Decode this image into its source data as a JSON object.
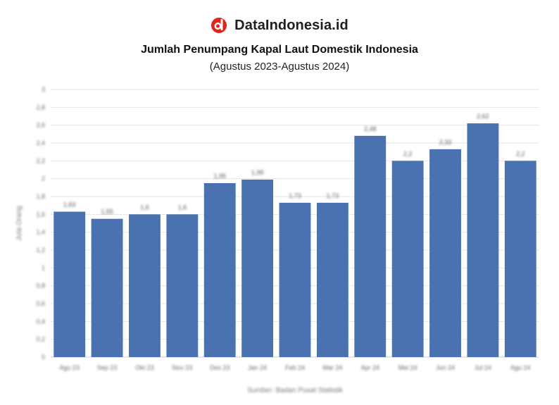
{
  "brand": {
    "name": "DataIndonesia.id",
    "logo_icon": "dataindonesia-logo-icon",
    "logo_color": "#e2231a"
  },
  "chart_data": {
    "type": "bar",
    "title": "Jumlah Penumpang Kapal Laut Domestik Indonesia",
    "subtitle": "(Agustus 2023-Agustus 2024)",
    "ylabel": "Juta Orang",
    "source": "Sumber: Badan Pusat Statistik",
    "categories": [
      "Agu 23",
      "Sep 23",
      "Okt 23",
      "Nov 23",
      "Des 23",
      "Jan 24",
      "Feb 24",
      "Mar 24",
      "Apr 24",
      "Mei 24",
      "Jun 24",
      "Jul 24",
      "Agu 24"
    ],
    "values": [
      1.63,
      1.55,
      1.6,
      1.6,
      1.95,
      1.99,
      1.73,
      1.73,
      2.48,
      2.2,
      2.33,
      2.62,
      2.2
    ],
    "data_labels": [
      "1,63",
      "1,55",
      "1,6",
      "1,6",
      "1,95",
      "1,99",
      "1,73",
      "1,73",
      "2,48",
      "2,2",
      "2,33",
      "2,62",
      "2,2"
    ],
    "ylim": [
      0,
      3
    ],
    "yticks": [
      0,
      0.2,
      0.4,
      0.6,
      0.8,
      1,
      1.2,
      1.4,
      1.6,
      1.8,
      2,
      2.2,
      2.4,
      2.6,
      2.8,
      3
    ],
    "ytick_labels": [
      "0",
      "0,2",
      "0,4",
      "0,6",
      "0,8",
      "1",
      "1,2",
      "1,4",
      "1,6",
      "1,8",
      "2",
      "2,2",
      "2,4",
      "2,6",
      "2,8",
      "3"
    ],
    "grid": true,
    "legend": "none",
    "bar_color": "#4a72b0"
  }
}
